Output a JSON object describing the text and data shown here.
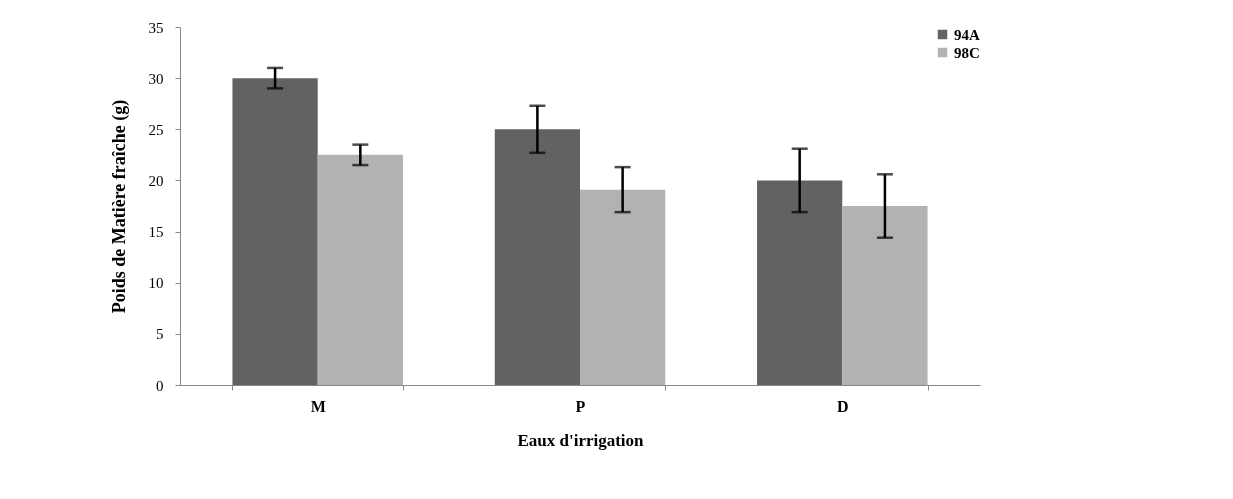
{
  "chart_data": {
    "type": "bar",
    "xlabel": "Eaux d'irrigation",
    "ylabel": "Poids de Matière fraîche (g)",
    "categories": [
      "M",
      "P",
      "D"
    ],
    "series": [
      {
        "name": "94A",
        "color": "#626262",
        "values": [
          30,
          25,
          20
        ],
        "errors": [
          1,
          2.3,
          3.1
        ]
      },
      {
        "name": "98C",
        "color": "#b2b2b2",
        "values": [
          22.5,
          19.1,
          17.5
        ],
        "errors": [
          1,
          2.2,
          3.1
        ]
      }
    ],
    "ylim": [
      0,
      35
    ],
    "yticks": [
      0,
      5,
      10,
      15,
      20,
      25,
      30,
      35
    ],
    "grid": false,
    "legend": "top right"
  }
}
